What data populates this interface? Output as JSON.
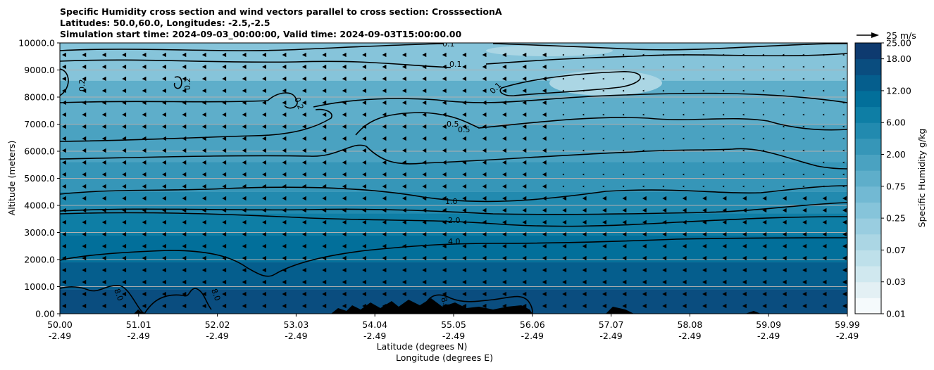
{
  "title_lines": [
    "Specific Humidity cross section and wind vectors parallel to cross section: CrosssectionA",
    "Latitudes: 50.0,60.0, Longitudes: -2.5,-2.5",
    "Simulation start time: 2024-09-03_00:00:00, Valid time: 2024-09-03T15:00:00.00"
  ],
  "chart_data": {
    "type": "heatmap",
    "title": "Specific Humidity cross section and wind vectors parallel to cross section: CrosssectionA",
    "xlabel": "Latitude (degrees N)",
    "xlabel2": "Longitude (degrees E)",
    "ylabel": "Altitude (meters)",
    "colorbar_label": "Specific Humidity g/kg",
    "x_ticks": [
      {
        "lat": "50.00",
        "lon": "-2.49"
      },
      {
        "lat": "51.01",
        "lon": "-2.49"
      },
      {
        "lat": "52.02",
        "lon": "-2.49"
      },
      {
        "lat": "53.03",
        "lon": "-2.49"
      },
      {
        "lat": "54.04",
        "lon": "-2.49"
      },
      {
        "lat": "55.05",
        "lon": "-2.49"
      },
      {
        "lat": "56.06",
        "lon": "-2.49"
      },
      {
        "lat": "57.07",
        "lon": "-2.49"
      },
      {
        "lat": "58.08",
        "lon": "-2.49"
      },
      {
        "lat": "59.09",
        "lon": "-2.49"
      },
      {
        "lat": "59.99",
        "lon": "-2.49"
      }
    ],
    "y_ticks": [
      "0.00",
      "1000.0",
      "2000.0",
      "3000.0",
      "4000.0",
      "5000.0",
      "6000.0",
      "7000.0",
      "8000.0",
      "9000.0",
      "10000.0"
    ],
    "ylim": [
      0,
      10000
    ],
    "xlim": [
      50.0,
      59.99
    ],
    "grid": "horizontal",
    "colorbar_ticks": [
      "0.01",
      "0.03",
      "0.07",
      "0.25",
      "0.75",
      "2.00",
      "6.00",
      "12.00",
      "18.00",
      "25.00"
    ],
    "colorbar_levels": [
      "0.01",
      "0.02",
      "0.03",
      "0.05",
      "0.07",
      "0.1",
      "0.25",
      "0.5",
      "0.75",
      "1.0",
      "2.0",
      "4.0",
      "6.0",
      "8.0",
      "12.0",
      "15.0",
      "18.0",
      "25.0"
    ],
    "colormap": [
      "#f5fafc",
      "#e3f0f4",
      "#d0e8ef",
      "#bee0ea",
      "#abd6e4",
      "#99cde0",
      "#86c4da",
      "#72b9d3",
      "#5eaeca",
      "#4aa2c1",
      "#3696b8",
      "#228aaf",
      "#0e7ea5",
      "#026f9a",
      "#055e8d",
      "#0a4d7f",
      "#0e3a6f",
      "#0a255c",
      "#061347"
    ],
    "contour_levels": [
      "0.1",
      "0.2",
      "0.5",
      "1.0",
      "2.0",
      "4.0",
      "8.0"
    ],
    "wind_reference": "25 m/s",
    "wind_direction": "toward lower latitude (southward)"
  }
}
